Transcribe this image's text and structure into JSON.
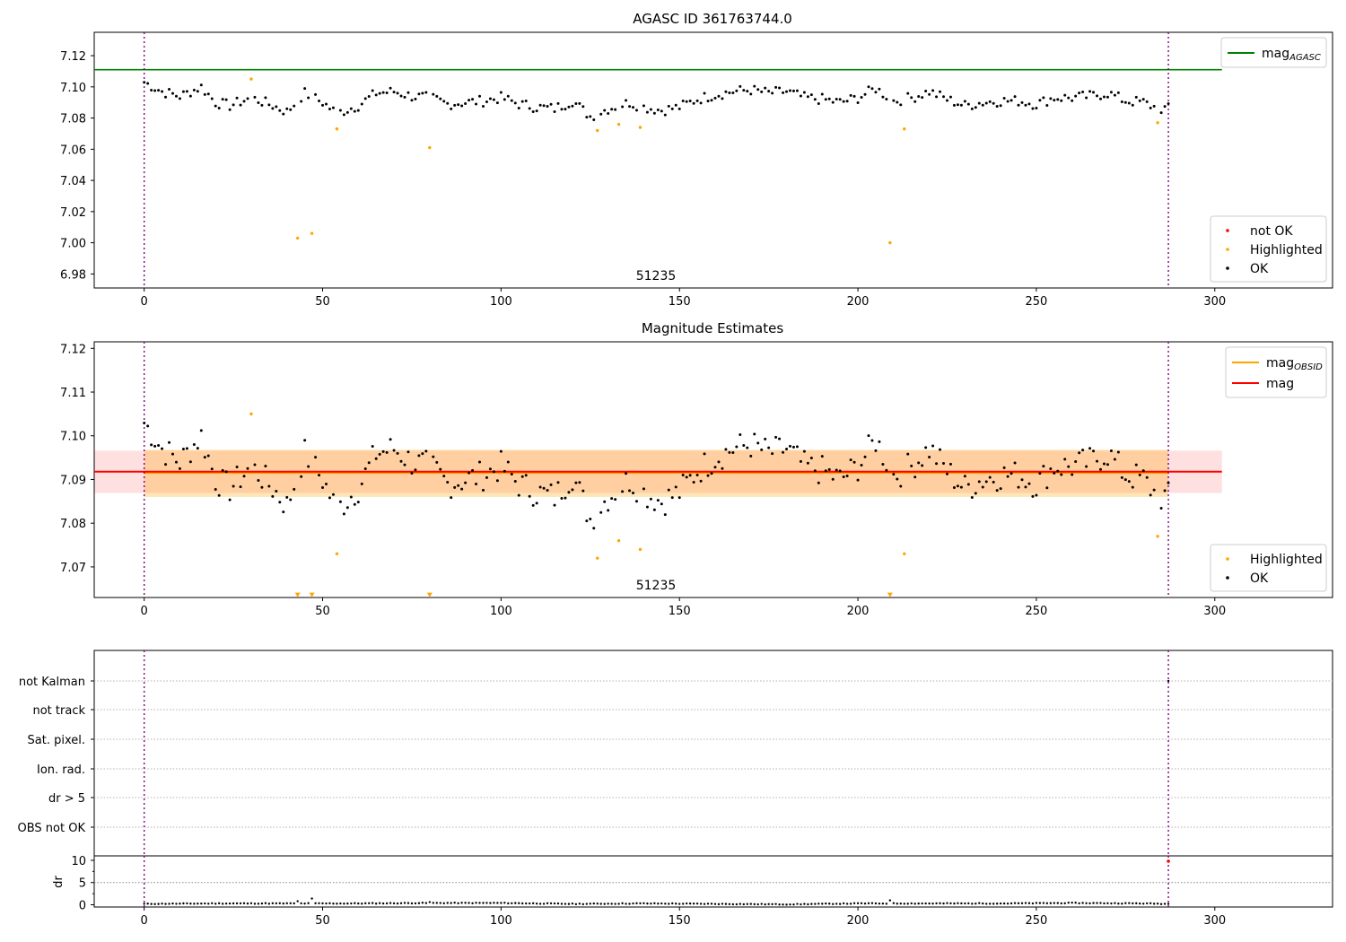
{
  "chart_data": [
    {
      "type": "scatter",
      "title": "AGASC ID 361763744.0",
      "annotation": "51235",
      "xlim": [
        -14,
        333
      ],
      "ylim": [
        6.971,
        7.135
      ],
      "xticks": [
        0,
        50,
        100,
        150,
        200,
        250,
        300
      ],
      "yticks": [
        6.98,
        7.0,
        7.02,
        7.04,
        7.06,
        7.08,
        7.1,
        7.12
      ],
      "ytick_labels": [
        "6.98",
        "7.00",
        "7.02",
        "7.04",
        "7.06",
        "7.08",
        "7.10",
        "7.12"
      ],
      "obs_boundaries": [
        0,
        287
      ],
      "reference_lines": [
        {
          "name": "mag_AGASC",
          "value": 7.111,
          "x_range": [
            -14,
            302
          ],
          "color": "#008000"
        }
      ],
      "legend_lines": [
        {
          "label": "mag",
          "sub": "AGASC",
          "color": "#008000"
        }
      ],
      "legend_points": [
        {
          "label": "not OK",
          "color": "#ff0000"
        },
        {
          "label": "Highlighted",
          "color": "#ffa500"
        },
        {
          "label": "OK",
          "color": "#000000"
        }
      ],
      "series": [
        {
          "name": "Highlighted",
          "color": "#ffa500",
          "x": [
            30,
            43,
            47,
            54,
            80,
            127,
            133,
            139,
            209,
            213,
            284
          ],
          "y": [
            7.105,
            7.003,
            7.006,
            7.073,
            7.061,
            7.072,
            7.076,
            7.074,
            7.0,
            7.073,
            7.077
          ]
        },
        {
          "name": "OK",
          "color": "#000000",
          "x_start": 0,
          "x_end": 287,
          "exclude_x": [
            30,
            43,
            47,
            54,
            80,
            127,
            133,
            139,
            209,
            213,
            284
          ],
          "keypoints": [
            [
              0,
              7.103
            ],
            [
              5,
              7.097
            ],
            [
              10,
              7.094
            ],
            [
              16,
              7.1
            ],
            [
              20,
              7.09
            ],
            [
              24,
              7.088
            ],
            [
              30,
              7.093
            ],
            [
              36,
              7.088
            ],
            [
              40,
              7.084
            ],
            [
              45,
              7.096
            ],
            [
              50,
              7.09
            ],
            [
              54,
              7.083
            ],
            [
              60,
              7.088
            ],
            [
              65,
              7.096
            ],
            [
              70,
              7.097
            ],
            [
              75,
              7.094
            ],
            [
              80,
              7.093
            ],
            [
              85,
              7.089
            ],
            [
              90,
              7.09
            ],
            [
              95,
              7.091
            ],
            [
              100,
              7.093
            ],
            [
              105,
              7.089
            ],
            [
              110,
              7.087
            ],
            [
              115,
              7.086
            ],
            [
              120,
              7.091
            ],
            [
              125,
              7.081
            ],
            [
              130,
              7.086
            ],
            [
              136,
              7.09
            ],
            [
              140,
              7.087
            ],
            [
              145,
              7.085
            ],
            [
              150,
              7.087
            ],
            [
              155,
              7.092
            ],
            [
              160,
              7.095
            ],
            [
              165,
              7.097
            ],
            [
              170,
              7.098
            ],
            [
              175,
              7.096
            ],
            [
              180,
              7.097
            ],
            [
              185,
              7.093
            ],
            [
              190,
              7.092
            ],
            [
              195,
              7.09
            ],
            [
              200,
              7.093
            ],
            [
              205,
              7.099
            ],
            [
              210,
              7.091
            ],
            [
              215,
              7.093
            ],
            [
              220,
              7.097
            ],
            [
              225,
              7.092
            ],
            [
              230,
              7.088
            ],
            [
              235,
              7.09
            ],
            [
              240,
              7.091
            ],
            [
              245,
              7.091
            ],
            [
              250,
              7.089
            ],
            [
              255,
              7.093
            ],
            [
              260,
              7.093
            ],
            [
              265,
              7.094
            ],
            [
              270,
              7.096
            ],
            [
              275,
              7.091
            ],
            [
              280,
              7.09
            ],
            [
              284,
              7.086
            ],
            [
              287,
              7.086
            ]
          ]
        }
      ]
    },
    {
      "type": "scatter",
      "title": "Magnitude Estimates",
      "annotation": "51235",
      "xlim": [
        -14,
        333
      ],
      "ylim": [
        7.063,
        7.1215
      ],
      "xticks": [
        0,
        50,
        100,
        150,
        200,
        250,
        300
      ],
      "yticks": [
        7.07,
        7.08,
        7.09,
        7.1,
        7.11,
        7.12
      ],
      "ytick_labels": [
        "7.07",
        "7.08",
        "7.09",
        "7.10",
        "7.11",
        "7.12"
      ],
      "obs_boundaries": [
        0,
        287
      ],
      "bands": [
        {
          "name": "mag range",
          "y_range": [
            7.0869,
            7.0966
          ],
          "x_range": [
            -14,
            302
          ],
          "color": "#ff9999",
          "opacity": 0.3
        },
        {
          "name": "mag_OBSID range",
          "y_range": [
            7.086,
            7.0968
          ],
          "x_range": [
            0,
            287
          ],
          "color": "#ffa500",
          "opacity": 0.28
        }
      ],
      "reference_lines": [
        {
          "name": "mag_OBSID",
          "value": 7.0915,
          "x_range": [
            0,
            287
          ],
          "color": "#ffa500"
        },
        {
          "name": "mag",
          "value": 7.0918,
          "x_range": [
            -14,
            302
          ],
          "color": "#ff0000"
        }
      ],
      "legend_lines": [
        {
          "label": "mag",
          "sub": "OBSID",
          "color": "#ffa500"
        },
        {
          "label": "mag",
          "sub": "",
          "color": "#ff0000"
        }
      ],
      "legend_points": [
        {
          "label": "Highlighted",
          "color": "#ffa500"
        },
        {
          "label": "OK",
          "color": "#000000"
        }
      ],
      "series": [
        {
          "name": "Highlighted",
          "color": "#ffa500",
          "x": [
            30,
            54,
            127,
            133,
            139,
            213,
            284
          ],
          "y": [
            7.105,
            7.073,
            7.072,
            7.076,
            7.074,
            7.073,
            7.077
          ]
        },
        {
          "name": "Highlighted (below axis)",
          "color": "#ffa500",
          "marker": "triangle-down",
          "x": [
            43,
            47,
            80,
            209
          ],
          "y": [
            7.0635,
            7.0635,
            7.0635,
            7.0635
          ]
        },
        {
          "name": "OK",
          "color": "#000000",
          "x_start": 0,
          "x_end": 287,
          "exclude_x": [
            30,
            43,
            47,
            54,
            80,
            127,
            133,
            139,
            209,
            213,
            284
          ],
          "keypoints": [
            [
              0,
              7.103
            ],
            [
              5,
              7.097
            ],
            [
              10,
              7.094
            ],
            [
              16,
              7.1
            ],
            [
              20,
              7.09
            ],
            [
              24,
              7.088
            ],
            [
              30,
              7.093
            ],
            [
              36,
              7.088
            ],
            [
              40,
              7.084
            ],
            [
              45,
              7.096
            ],
            [
              50,
              7.09
            ],
            [
              54,
              7.083
            ],
            [
              60,
              7.088
            ],
            [
              65,
              7.096
            ],
            [
              70,
              7.097
            ],
            [
              75,
              7.094
            ],
            [
              80,
              7.093
            ],
            [
              85,
              7.089
            ],
            [
              90,
              7.09
            ],
            [
              95,
              7.091
            ],
            [
              100,
              7.093
            ],
            [
              105,
              7.089
            ],
            [
              110,
              7.087
            ],
            [
              115,
              7.086
            ],
            [
              120,
              7.091
            ],
            [
              125,
              7.081
            ],
            [
              130,
              7.086
            ],
            [
              136,
              7.09
            ],
            [
              140,
              7.087
            ],
            [
              145,
              7.085
            ],
            [
              150,
              7.087
            ],
            [
              155,
              7.092
            ],
            [
              160,
              7.095
            ],
            [
              165,
              7.097
            ],
            [
              170,
              7.098
            ],
            [
              175,
              7.096
            ],
            [
              180,
              7.097
            ],
            [
              185,
              7.093
            ],
            [
              190,
              7.092
            ],
            [
              195,
              7.09
            ],
            [
              200,
              7.093
            ],
            [
              205,
              7.099
            ],
            [
              210,
              7.091
            ],
            [
              215,
              7.093
            ],
            [
              220,
              7.097
            ],
            [
              225,
              7.092
            ],
            [
              230,
              7.088
            ],
            [
              235,
              7.09
            ],
            [
              240,
              7.091
            ],
            [
              245,
              7.091
            ],
            [
              250,
              7.089
            ],
            [
              255,
              7.093
            ],
            [
              260,
              7.093
            ],
            [
              265,
              7.094
            ],
            [
              270,
              7.096
            ],
            [
              275,
              7.091
            ],
            [
              280,
              7.09
            ],
            [
              284,
              7.086
            ],
            [
              287,
              7.086
            ]
          ]
        }
      ]
    },
    {
      "type": "scatter",
      "title": "",
      "xlim": [
        -14,
        333
      ],
      "categories": [
        "not Kalman",
        "not track",
        "Sat. pixel.",
        "Ion. rad.",
        "dr > 5",
        "OBS not OK"
      ],
      "flags": [
        {
          "category": "not Kalman",
          "x": [
            287
          ],
          "color": "#000000"
        }
      ],
      "obs_boundaries": [
        0,
        287
      ],
      "grid": true
    },
    {
      "type": "scatter",
      "title": "",
      "ylabel": "dr",
      "xlim": [
        -14,
        333
      ],
      "ylim": [
        -0.5,
        11
      ],
      "xticks": [
        0,
        50,
        100,
        150,
        200,
        250,
        300
      ],
      "yticks": [
        0,
        5,
        10
      ],
      "ytick_labels": [
        "0",
        "5",
        "10"
      ],
      "hline": {
        "value": 5,
        "color": "#888888",
        "style": "dotted"
      },
      "obs_boundaries": [
        0,
        287
      ],
      "series": [
        {
          "name": "dr",
          "color": "#000000",
          "x_start": 0,
          "x_end": 287,
          "keypoints": [
            [
              0,
              0.2
            ],
            [
              20,
              0.3
            ],
            [
              40,
              0.3
            ],
            [
              60,
              0.3
            ],
            [
              80,
              0.4
            ],
            [
              100,
              0.4
            ],
            [
              120,
              0.2
            ],
            [
              140,
              0.3
            ],
            [
              160,
              0.2
            ],
            [
              180,
              0.1
            ],
            [
              200,
              0.3
            ],
            [
              220,
              0.3
            ],
            [
              240,
              0.3
            ],
            [
              260,
              0.4
            ],
            [
              280,
              0.3
            ],
            [
              287,
              0.2
            ]
          ],
          "spikes": [
            [
              43,
              0.8
            ],
            [
              47,
              1.4
            ],
            [
              80,
              0.6
            ],
            [
              209,
              1.0
            ]
          ]
        },
        {
          "name": "dr > 5",
          "color": "#ff0000",
          "x": [
            287
          ],
          "y": [
            9.8
          ]
        }
      ]
    }
  ]
}
